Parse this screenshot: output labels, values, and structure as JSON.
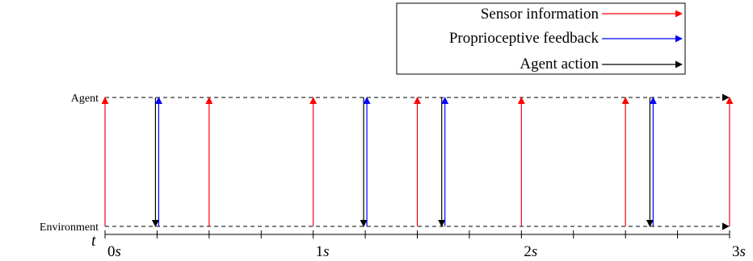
{
  "legend": {
    "items": [
      {
        "label": "Sensor information",
        "color": "#ff0000",
        "type": "sensor"
      },
      {
        "label": "Proprioceptive feedback",
        "color": "#0000ff",
        "type": "proprioceptive"
      },
      {
        "label": "Agent action",
        "color": "#000000",
        "type": "action"
      }
    ]
  },
  "lanes": {
    "agent_label": "Agent",
    "environment_label": "Environment"
  },
  "time_axis": {
    "symbol": "t",
    "range": [
      0,
      3
    ],
    "minor_step": 0.25,
    "major_ticks": [
      {
        "value": 0,
        "num": "0",
        "unit": "s"
      },
      {
        "value": 1,
        "num": "1",
        "unit": "s"
      },
      {
        "value": 2,
        "num": "2",
        "unit": "s"
      },
      {
        "value": 3,
        "num": "3",
        "unit": "s"
      }
    ]
  },
  "events": {
    "sensor_times": [
      0,
      0.5,
      1,
      1.5,
      2,
      2.5,
      3
    ],
    "feedback_action_times": [
      0.25,
      1.25,
      1.625,
      2.625
    ]
  }
}
